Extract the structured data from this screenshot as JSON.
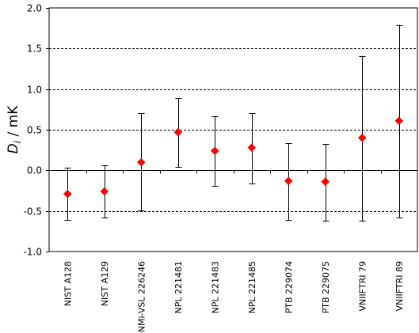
{
  "chart_data": {
    "type": "scatter",
    "title": "",
    "ylabel_symbol": "D",
    "ylabel_subscript": "i",
    "ylabel_unit": " / mK",
    "ylim": [
      -1.0,
      2.0
    ],
    "yticks": [
      -1.0,
      -0.5,
      0.0,
      0.5,
      1.0,
      1.5,
      2.0
    ],
    "ytick_labels": [
      "-1.0",
      "-0.5",
      "0.0",
      "0.5",
      "1.0",
      "1.5",
      "2.0"
    ],
    "grid": "dashed horizontal at 0.5, 1.0, 1.5, -0.5",
    "categories": [
      "NIST A128",
      "NIST A129",
      "NMi-VSL 226246",
      "NPL 221481",
      "NPL 221483",
      "NPL 221485",
      "PTB 229074",
      "PTB 229075",
      "VNIIFTRI 79",
      "VNIIFTRI 89"
    ],
    "values": [
      -0.29,
      -0.26,
      0.1,
      0.47,
      0.24,
      0.28,
      -0.13,
      -0.14,
      0.4,
      0.61
    ],
    "lower": [
      -0.61,
      -0.58,
      -0.49,
      0.04,
      -0.19,
      -0.16,
      -0.61,
      -0.62,
      -0.62,
      -0.58
    ],
    "upper": [
      0.03,
      0.06,
      0.7,
      0.89,
      0.67,
      0.7,
      0.33,
      0.32,
      1.41,
      1.79
    ],
    "marker_color": "#ff0000",
    "marker_shape": "diamond",
    "errorbar_color": "#000000"
  }
}
